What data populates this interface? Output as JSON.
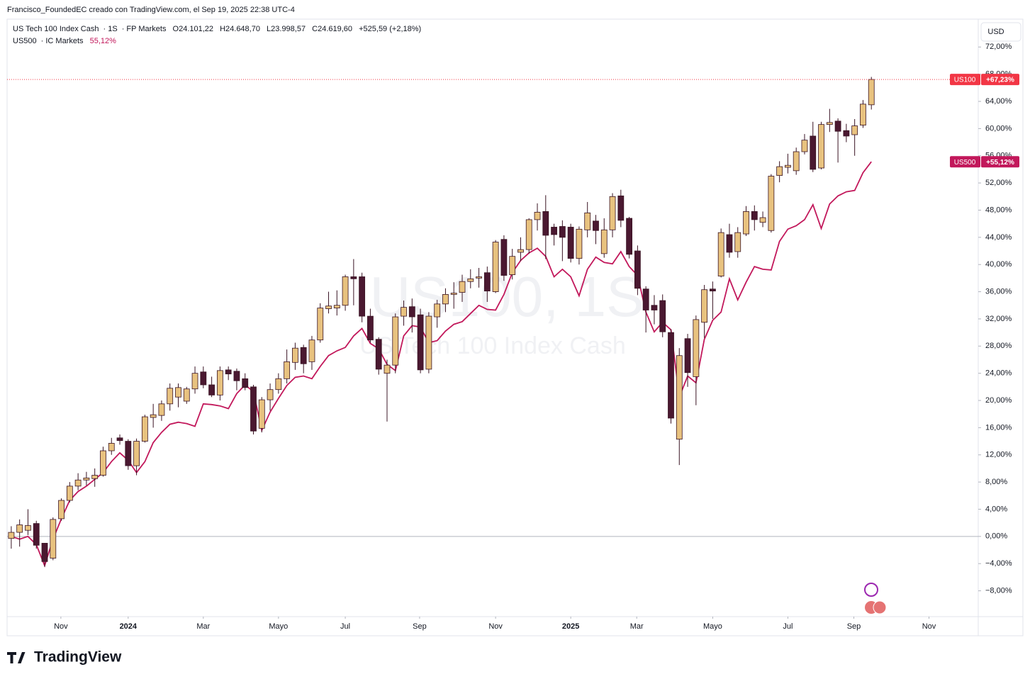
{
  "header": {
    "credit": "Francisco_FoundedEC creado con TradingView.com, el Sep 19, 2025 22:38 UTC-4",
    "currency": "USD",
    "watermark_symbol": "US100, 1S",
    "watermark_name": "US Tech 100 Index Cash"
  },
  "footer": {
    "logo": "TradingView"
  },
  "chart_data": {
    "type": "candlestick",
    "xlim": [
      -0.5,
      115.8
    ],
    "xticks": [
      {
        "value": 5.94,
        "label": "Nov"
      },
      {
        "value": 14.0,
        "label": "2024"
      },
      {
        "value": 23.0,
        "label": "Mar"
      },
      {
        "value": 32.0,
        "label": "Mayo"
      },
      {
        "value": 40.0,
        "label": "Jul"
      },
      {
        "value": 48.9,
        "label": "Sep"
      },
      {
        "value": 58.0,
        "label": "Nov"
      },
      {
        "value": 67.0,
        "label": "2025"
      },
      {
        "value": 74.9,
        "label": "Mar"
      },
      {
        "value": 84.0,
        "label": "Mayo"
      },
      {
        "value": 93.0,
        "label": "Jul"
      },
      {
        "value": 100.9,
        "label": "Sep"
      },
      {
        "value": 109.9,
        "label": "Nov"
      }
    ],
    "ylim": [
      -11.8,
      76.1
    ],
    "yticks": [
      {
        "value": -8,
        "label": "−8,00%"
      },
      {
        "value": -4,
        "label": "−4,00%"
      },
      {
        "value": 0,
        "label": "0,00%"
      },
      {
        "value": 4,
        "label": "4,00%"
      },
      {
        "value": 8,
        "label": "8,00%"
      },
      {
        "value": 12,
        "label": "12,00%"
      },
      {
        "value": 16,
        "label": "16,00%"
      },
      {
        "value": 20,
        "label": "20,00%"
      },
      {
        "value": 24,
        "label": "24,00%"
      },
      {
        "value": 28,
        "label": "28,00%"
      },
      {
        "value": 32,
        "label": "32,00%"
      },
      {
        "value": 36,
        "label": "36,00%"
      },
      {
        "value": 40,
        "label": "40,00%"
      },
      {
        "value": 44,
        "label": "44,00%"
      },
      {
        "value": 48,
        "label": "48,00%"
      },
      {
        "value": 52,
        "label": "52,00%"
      },
      {
        "value": 56,
        "label": "56,00%"
      },
      {
        "value": 60,
        "label": "60,00%"
      },
      {
        "value": 64,
        "label": "64,00%"
      },
      {
        "value": 68,
        "label": "68,00%"
      },
      {
        "value": 72,
        "label": "72,00%"
      }
    ],
    "series": [
      {
        "name": "US Tech 100 Index Cash",
        "interval": "1S",
        "exchange": "FP Markets",
        "type": "candlestick",
        "badge": "US100",
        "badge_value": "+67,23%",
        "up_color": "#e8c27f",
        "down_color": "#4a1830",
        "color": "#f23645",
        "ohlc_text": [
          "O24.101,22",
          "H24.648,70",
          "L23.998,57",
          "C24.619,60",
          "+525,59 (+2,18%)"
        ],
        "open": [
          -0.3,
          0.6,
          0.9,
          1.9,
          -1,
          -3.2,
          2.6,
          5.3,
          7.4,
          8.3,
          8.5,
          9,
          12.6,
          14.5,
          14,
          10.4,
          14,
          17.5,
          17.8,
          19.5,
          20.5,
          19.9,
          21.7,
          24.2,
          22.3,
          20.8,
          24.5,
          24.3,
          23.2,
          22,
          15.9,
          20.1,
          21.6,
          23.2,
          25.6,
          27.8,
          25.7,
          28.9,
          33.5,
          33.6,
          34,
          38.2,
          38.2,
          32.4,
          29,
          24,
          25.2,
          32.4,
          33.8,
          32.6,
          24.6,
          32.3,
          34.2,
          35.6,
          35.9,
          37.5,
          38,
          38.8,
          36,
          43.7,
          38.5,
          41.8,
          42.2,
          46.6,
          47.8,
          45.5,
          45.6,
          45.5,
          40.9,
          45.1,
          46.4,
          41.6,
          45.1,
          50.1,
          46.8,
          42,
          36.4,
          34,
          34.7,
          30,
          14.3,
          29.1,
          23.5,
          31.5,
          36.4,
          38.3,
          44.4,
          41.9,
          44.5,
          47.8,
          46.2,
          45,
          53.1,
          54.3,
          53.8,
          56.6,
          58.9,
          54.2,
          60.6,
          61.1,
          59.7,
          59.1,
          60.5,
          63.5
        ],
        "high": [
          1.5,
          2.5,
          4,
          2.3,
          -1,
          2.8,
          5.6,
          8,
          9.3,
          9.5,
          10,
          13.2,
          14.5,
          15,
          14.3,
          14.4,
          17.9,
          19.5,
          20,
          22.5,
          22.5,
          22,
          25,
          25,
          23.5,
          25,
          25,
          24.7,
          24,
          22.3,
          20.5,
          22.5,
          24,
          27.5,
          28.5,
          28.2,
          29.5,
          34.3,
          36,
          36.2,
          38.5,
          40.8,
          38.8,
          33.5,
          29.3,
          26,
          32.8,
          34.7,
          35,
          33.5,
          33,
          34.8,
          36.5,
          37.4,
          38.5,
          39.3,
          39.5,
          39.7,
          43.6,
          44.3,
          42.3,
          44,
          46.8,
          49,
          50.2,
          46,
          46.5,
          46,
          45.6,
          49.2,
          47.3,
          46.8,
          50.5,
          51,
          47,
          42.8,
          36.8,
          35.5,
          35.6,
          30.5,
          27.7,
          29.8,
          32.5,
          37,
          37.5,
          45.3,
          46,
          45.5,
          48.6,
          48.7,
          47.8,
          53.3,
          55.2,
          56.3,
          57.2,
          59.2,
          61,
          61,
          62.9,
          61.5,
          60.7,
          61.4,
          64.2,
          67.6
        ],
        "low": [
          -1.8,
          -1.5,
          0.2,
          -1.8,
          -4.5,
          -3.5,
          2.3,
          5,
          6.8,
          7.5,
          7.3,
          8.8,
          12,
          13.5,
          9.8,
          9,
          13.8,
          16,
          17,
          18.5,
          19,
          19.5,
          21,
          21.8,
          20.5,
          20,
          23,
          21.5,
          21.5,
          15,
          15.3,
          18.5,
          21,
          22.5,
          24.5,
          24,
          24.5,
          28.5,
          32.8,
          32.5,
          33.2,
          34,
          31.5,
          28.5,
          23.8,
          16.9,
          24,
          31,
          30,
          24,
          24,
          30.7,
          33,
          33.5,
          34.5,
          36.5,
          36.6,
          34.5,
          35.8,
          37.6,
          37.8,
          40.5,
          41.6,
          45,
          40.8,
          42.8,
          40.5,
          40.3,
          40,
          44,
          43,
          41,
          44,
          45.5,
          40.9,
          35.5,
          30,
          31.2,
          29.3,
          16.6,
          10.5,
          22,
          19.3,
          29.2,
          32,
          38.1,
          41,
          41,
          44.2,
          45,
          45.5,
          44.7,
          52.1,
          53.4,
          53.2,
          56.2,
          53.6,
          54,
          59.5,
          55,
          58,
          56,
          60.1,
          62.8
        ],
        "close": [
          0.6,
          1.7,
          1.6,
          -1.3,
          -3.7,
          2.5,
          5.3,
          7.4,
          8.3,
          8.6,
          9,
          12.6,
          13.7,
          14.1,
          10.4,
          14,
          17.6,
          17.9,
          19.5,
          21.8,
          21.9,
          21.7,
          24,
          22.3,
          20.8,
          24.4,
          23.9,
          22.9,
          21.9,
          15.5,
          20.1,
          21.6,
          23.2,
          25.7,
          27.7,
          25.4,
          28.9,
          33.6,
          33.9,
          34,
          38.2,
          37.9,
          32.4,
          28.9,
          24.6,
          25.2,
          32.3,
          33.7,
          32.3,
          24.5,
          32.4,
          34.2,
          35.6,
          35.8,
          37.5,
          37.9,
          38.2,
          36.1,
          43.3,
          38.4,
          41.2,
          42.2,
          46.6,
          47.7,
          44.3,
          44.4,
          44,
          40.9,
          45.2,
          47.6,
          45,
          45.1,
          50,
          46.5,
          41.5,
          36.5,
          33.3,
          33.3,
          30.1,
          17.4,
          26.6,
          24.1,
          31.9,
          36.3,
          36.1,
          44.7,
          41.8,
          44.7,
          47.8,
          46.6,
          46.9,
          53,
          54.4,
          54.6,
          56.6,
          58.3,
          54,
          60.6,
          60.9,
          59.6,
          58.9,
          60.4,
          63.6,
          67.23
        ]
      },
      {
        "name": "US500",
        "exchange": "IC Markets",
        "type": "line",
        "legend_value": "55,12%",
        "badge": "US500",
        "badge_value": "+55,12%",
        "color": "#c2185b",
        "values": [
          0,
          -0.4,
          0,
          -1.2,
          -4.3,
          -0.4,
          2.6,
          5.3,
          6.6,
          7.4,
          8.4,
          9.4,
          11,
          12.3,
          11.2,
          9.4,
          11,
          13.8,
          15.3,
          16.5,
          16.8,
          16.6,
          16.2,
          19.5,
          19.4,
          19.2,
          18.8,
          21,
          22.3,
          21.3,
          15.6,
          18.3,
          20.3,
          22.2,
          23.4,
          23.6,
          23.2,
          25,
          26.6,
          27.3,
          27.8,
          29.5,
          30.6,
          28.4,
          27.6,
          25.3,
          24.4,
          29.5,
          31,
          30.8,
          28.5,
          28.8,
          30.2,
          31.2,
          31.6,
          32.8,
          34,
          33.4,
          33.3,
          35.6,
          38.8,
          40.6,
          41.7,
          42.4,
          41.2,
          38.2,
          39.3,
          38.2,
          35.4,
          39.3,
          41.1,
          40.3,
          40.1,
          41.9,
          39.7,
          38.4,
          33,
          30.1,
          31.5,
          30.4,
          20.5,
          23.6,
          22.6,
          29,
          31.8,
          33,
          37.9,
          34.8,
          37.4,
          39.7,
          39.3,
          39.2,
          43.4,
          45.2,
          45.7,
          46.6,
          48.8,
          45.3,
          48.9,
          50.1,
          50.7,
          50.9,
          53.5,
          55.12
        ]
      }
    ]
  }
}
